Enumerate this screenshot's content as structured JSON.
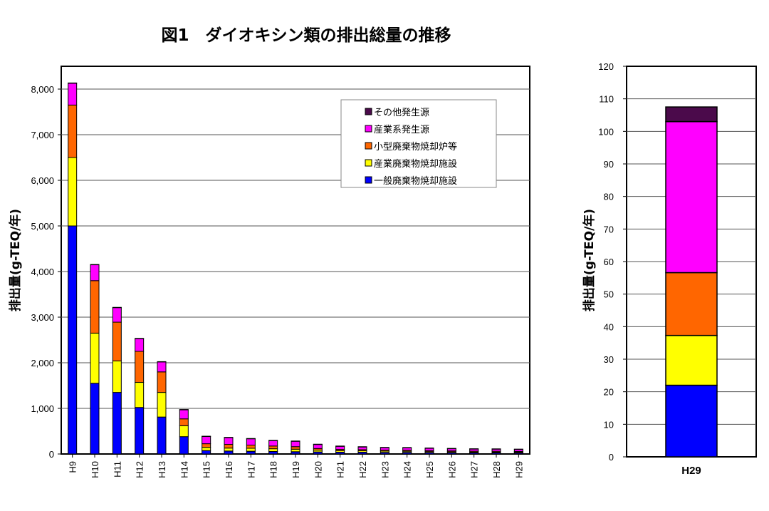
{
  "title": "図1　ダイオキシン類の排出総量の推移",
  "colors": {
    "その他発生源": "#4b0a4b",
    "産業系発生源": "#ff00ff",
    "小型廃棄物焼却炉等": "#ff6600",
    "産業廃棄物焼却施設": "#ffff00",
    "一般廃棄物焼却施設": "#0000ff"
  },
  "chart_data": [
    {
      "type": "bar",
      "stacked": true,
      "ylabel": "排出量(g-TEQ/年)",
      "ylim": [
        0,
        8500
      ],
      "yticks": [
        "0",
        "1,000",
        "2,000",
        "3,000",
        "4,000",
        "5,000",
        "6,000",
        "7,000",
        "8,000"
      ],
      "grid": true,
      "legend_position": "top-right",
      "legend_order": [
        "その他発生源",
        "産業系発生源",
        "小型廃棄物焼却炉等",
        "産業廃棄物焼却施設",
        "一般廃棄物焼却施設"
      ],
      "categories": [
        "H9",
        "H10",
        "H11",
        "H12",
        "H13",
        "H14",
        "H15",
        "H16",
        "H17",
        "H18",
        "H19",
        "H20",
        "H21",
        "H22",
        "H23",
        "H24",
        "H25",
        "H26",
        "H27",
        "H28",
        "H29"
      ],
      "series": [
        {
          "name": "一般廃棄物焼却施設",
          "values": [
            5000,
            1550,
            1350,
            1020,
            810,
            380,
            75,
            65,
            60,
            55,
            50,
            45,
            40,
            40,
            35,
            35,
            30,
            28,
            25,
            24,
            22
          ]
        },
        {
          "name": "産業廃棄物焼却施設",
          "values": [
            1500,
            1100,
            690,
            550,
            540,
            240,
            70,
            65,
            65,
            60,
            55,
            40,
            35,
            30,
            28,
            25,
            22,
            20,
            18,
            17,
            15
          ]
        },
        {
          "name": "小型廃棄物焼却炉等",
          "values": [
            1150,
            1150,
            850,
            680,
            450,
            150,
            80,
            80,
            70,
            60,
            55,
            35,
            25,
            25,
            22,
            22,
            20,
            20,
            19,
            19,
            19
          ]
        },
        {
          "name": "産業系発生源",
          "values": [
            480,
            350,
            320,
            280,
            220,
            200,
            160,
            150,
            140,
            120,
            120,
            90,
            70,
            60,
            55,
            55,
            55,
            50,
            48,
            48,
            46
          ]
        },
        {
          "name": "その他発生源",
          "values": [
            5,
            5,
            5,
            5,
            5,
            5,
            5,
            5,
            5,
            5,
            5,
            5,
            5,
            5,
            5,
            5,
            5,
            5,
            5,
            5,
            5
          ]
        }
      ]
    },
    {
      "type": "bar",
      "stacked": true,
      "ylabel": "排出量(g-TEQ/年)",
      "ylim": [
        0,
        120
      ],
      "yticks": [
        "0",
        "10",
        "20",
        "30",
        "40",
        "50",
        "60",
        "70",
        "80",
        "90",
        "100",
        "110",
        "120"
      ],
      "grid": true,
      "categories": [
        "H29"
      ],
      "series": [
        {
          "name": "一般廃棄物焼却施設",
          "values": [
            22
          ]
        },
        {
          "name": "産業廃棄物焼却施設",
          "values": [
            15.3
          ]
        },
        {
          "name": "小型廃棄物焼却炉等",
          "values": [
            19.3
          ]
        },
        {
          "name": "産業系発生源",
          "values": [
            46.4
          ]
        },
        {
          "name": "その他発生源",
          "values": [
            4.5
          ]
        }
      ]
    }
  ]
}
